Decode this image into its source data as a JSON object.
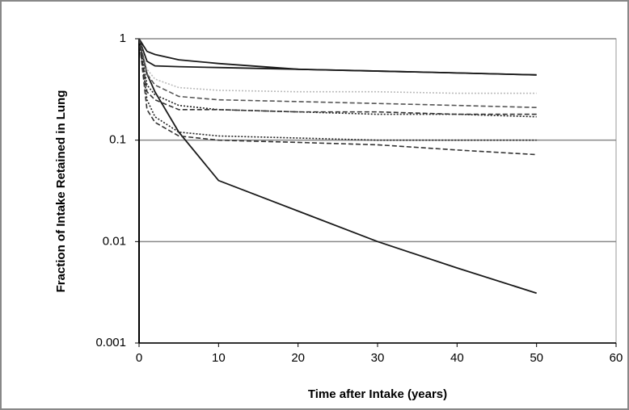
{
  "chart_data": {
    "type": "line",
    "y_label": "Fraction of Intake Retained in Lung",
    "x_label": "Time after Intake (years)",
    "x": [
      0,
      1,
      2,
      5,
      10,
      20,
      30,
      40,
      50
    ],
    "xlim": [
      0,
      60
    ],
    "xticks": [
      0,
      10,
      20,
      30,
      40,
      50,
      60
    ],
    "ylim": [
      0.001,
      1
    ],
    "yticks": [
      0.001,
      0.01,
      0.1,
      1
    ],
    "log_y": true,
    "grid": true,
    "series": [
      {
        "color": "#1a1a1a",
        "style": "solid",
        "values": [
          1,
          0.75,
          0.7,
          0.62,
          0.57,
          0.5,
          0.48,
          0.46,
          0.44
        ]
      },
      {
        "color": "#1a1a1a",
        "style": "solid",
        "values": [
          1,
          0.6,
          0.54,
          0.53,
          0.52,
          0.5,
          0.48,
          0.46,
          0.44
        ]
      },
      {
        "color": "#1a1a1a",
        "style": "solid",
        "values": [
          1,
          0.45,
          0.3,
          0.12,
          0.04,
          0.02,
          0.01,
          0.0055,
          0.0031
        ]
      },
      {
        "color": "#bbbbbb",
        "style": "dotted",
        "values": [
          1,
          0.5,
          0.4,
          0.33,
          0.31,
          0.3,
          0.3,
          0.29,
          0.29
        ]
      },
      {
        "color": "#555555",
        "style": "dashed",
        "values": [
          1,
          0.45,
          0.35,
          0.27,
          0.25,
          0.24,
          0.23,
          0.22,
          0.21
        ]
      },
      {
        "color": "#222222",
        "style": "dotted",
        "values": [
          1,
          0.35,
          0.28,
          0.22,
          0.2,
          0.19,
          0.18,
          0.18,
          0.17
        ]
      },
      {
        "color": "#333333",
        "style": "dashed",
        "values": [
          1,
          0.3,
          0.25,
          0.2,
          0.2,
          0.19,
          0.19,
          0.18,
          0.18
        ]
      },
      {
        "color": "#222222",
        "style": "dotted",
        "values": [
          1,
          0.25,
          0.17,
          0.12,
          0.11,
          0.105,
          0.1,
          0.1,
          0.1
        ]
      },
      {
        "color": "#333333",
        "style": "dashed",
        "values": [
          1,
          0.2,
          0.15,
          0.11,
          0.1,
          0.095,
          0.09,
          0.08,
          0.072
        ]
      }
    ]
  }
}
